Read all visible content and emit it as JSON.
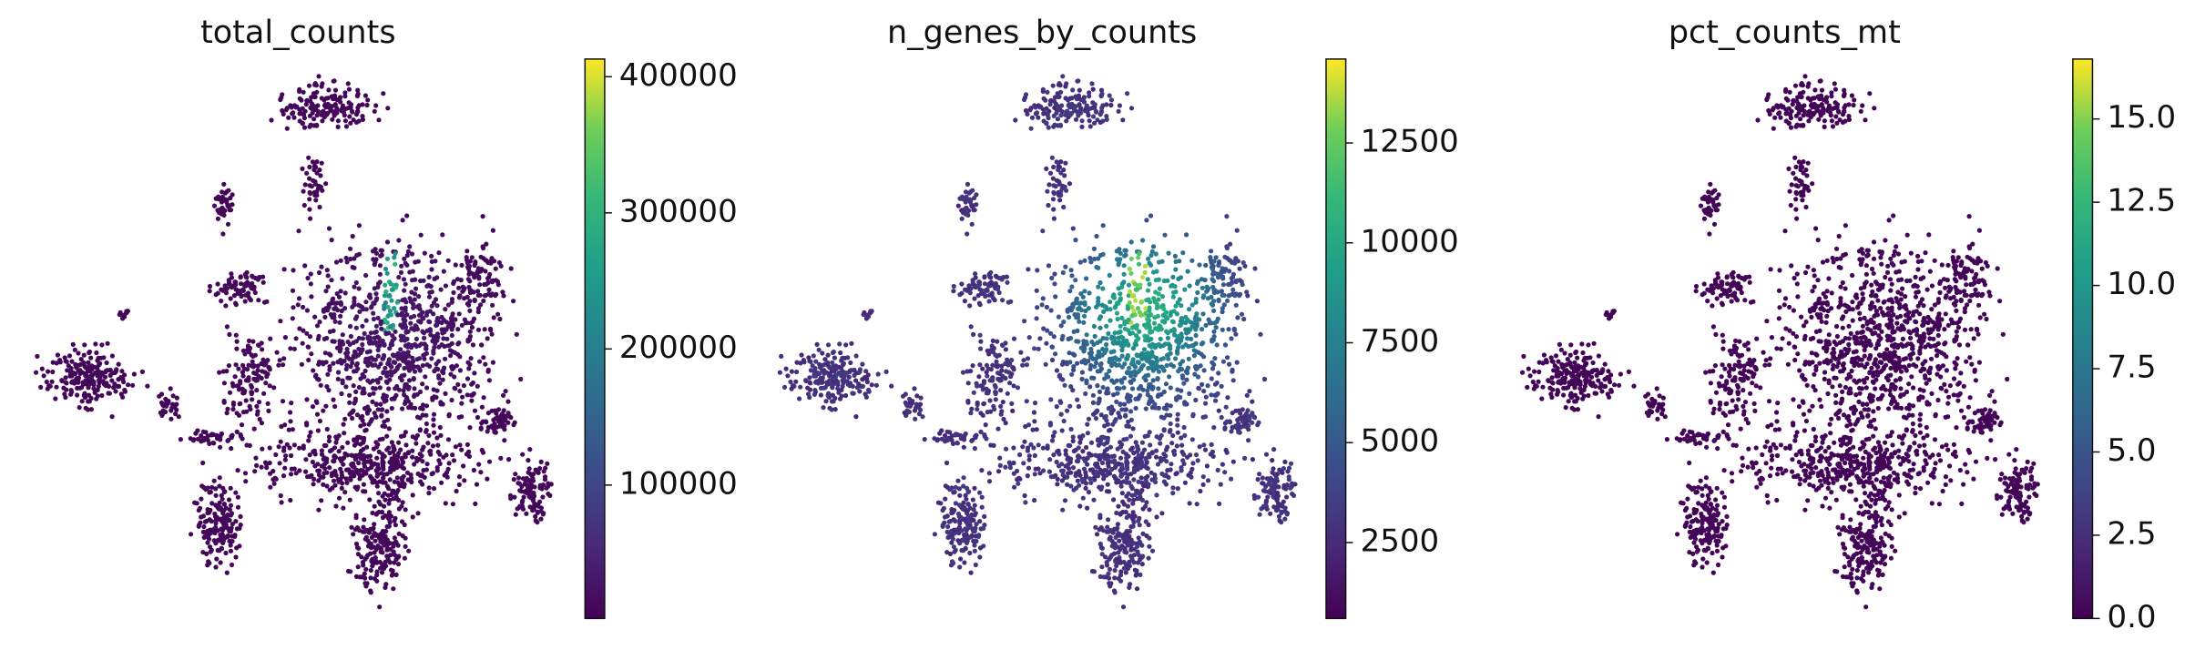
{
  "chart_data": [
    {
      "type": "scatter",
      "title": "total_counts",
      "cmap": "viridis",
      "clim": [
        2000,
        413000
      ],
      "cticks": [
        100000,
        200000,
        300000,
        400000
      ]
    },
    {
      "type": "scatter",
      "title": "n_genes_by_counts",
      "cmap": "viridis",
      "clim": [
        600,
        14600
      ],
      "cticks": [
        2500,
        5000,
        7500,
        10000,
        12500
      ]
    },
    {
      "type": "scatter",
      "title": "pct_counts_mt",
      "cmap": "viridis",
      "clim": [
        0,
        16.8
      ],
      "cticks": [
        {
          "value": 0,
          "label": "0.0"
        },
        {
          "value": 2.5,
          "label": "2.5"
        },
        {
          "value": 5,
          "label": "5.0"
        },
        {
          "value": 7.5,
          "label": "7.5"
        },
        {
          "value": 10,
          "label": "10.0"
        },
        {
          "value": 12.5,
          "label": "12.5"
        },
        {
          "value": 15,
          "label": "15.0"
        }
      ]
    }
  ]
}
